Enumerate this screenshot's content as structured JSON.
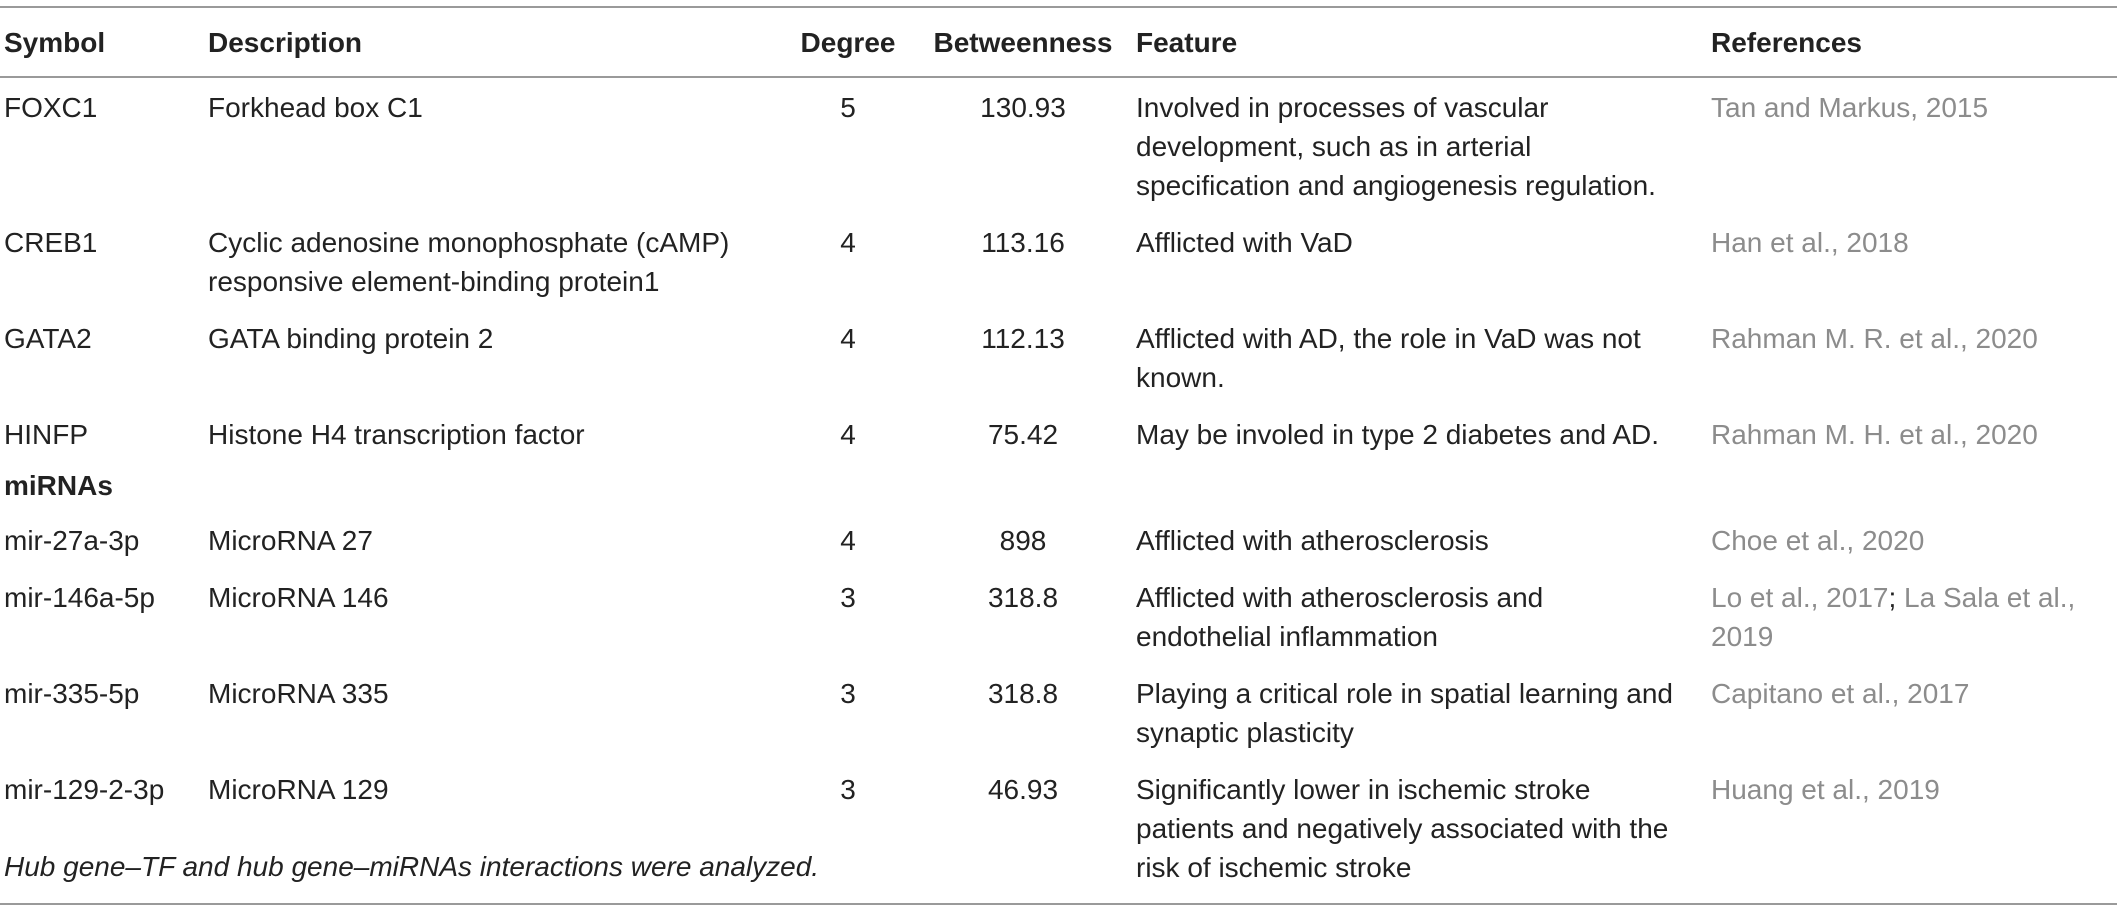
{
  "table": {
    "headers": {
      "symbol": "Symbol",
      "description": "Description",
      "degree": "Degree",
      "betweenness": "Betweenness",
      "feature": "Feature",
      "references": "References"
    },
    "rows": [
      {
        "symbol": "FOXC1",
        "description": "Forkhead box C1",
        "degree": "5",
        "betweenness": "130.93",
        "feature_lines": [
          "Involved in processes of vascular",
          "development, such as in arterial",
          "specification and angiogenesis regulation."
        ],
        "references": [
          "Tan and Markus, 2015"
        ]
      },
      {
        "symbol": "CREB1",
        "description_lines": [
          "Cyclic adenosine monophosphate (cAMP)",
          "responsive element-binding protein1"
        ],
        "degree": "4",
        "betweenness": "113.16",
        "feature_lines": [
          "Afflicted with VaD"
        ],
        "references": [
          "Han et al., 2018"
        ]
      },
      {
        "symbol": "GATA2",
        "description": "GATA binding protein 2",
        "degree": "4",
        "betweenness": "112.13",
        "feature_lines": [
          "Afflicted with AD, the role in VaD was not",
          "known."
        ],
        "references": [
          "Rahman M. R. et al., 2020"
        ]
      },
      {
        "symbol": "HINFP",
        "description": "Histone H4 transcription factor",
        "degree": "4",
        "betweenness": "75.42",
        "feature_lines": [
          "May be involed in type 2 diabetes and AD."
        ],
        "references": [
          "Rahman M. H. et al., 2020"
        ]
      }
    ],
    "section_label": "miRNAs",
    "mirna_rows": [
      {
        "symbol": "mir-27a-3p",
        "description": "MicroRNA 27",
        "degree": "4",
        "betweenness": "898",
        "feature_lines": [
          "Afflicted with atherosclerosis"
        ],
        "references": [
          "Choe et al., 2020"
        ]
      },
      {
        "symbol": "mir-146a-5p",
        "description": "MicroRNA 146",
        "degree": "3",
        "betweenness": "318.8",
        "feature_lines": [
          "Afflicted with atherosclerosis and",
          "endothelial inflammation"
        ],
        "references": [
          "Lo et al., 2017",
          "La Sala et al.,",
          "2019"
        ]
      },
      {
        "symbol": "mir-335-5p",
        "description": "MicroRNA 335",
        "degree": "3",
        "betweenness": "318.8",
        "feature_lines": [
          "Playing a critical role in spatial learning and",
          "synaptic plasticity"
        ],
        "references": [
          "Capitano et al., 2017"
        ]
      },
      {
        "symbol": "mir-129-2-3p",
        "description": "MicroRNA 129",
        "degree": "3",
        "betweenness": "46.93",
        "feature_lines": [
          "Significantly lower in ischemic stroke",
          "patients and negatively associated with the",
          "risk of ischemic stroke"
        ],
        "references": [
          "Huang et al., 2019"
        ]
      }
    ],
    "ref_separator": ";",
    "footnote": "Hub gene–TF and hub gene–miRNAs interactions were analyzed."
  }
}
